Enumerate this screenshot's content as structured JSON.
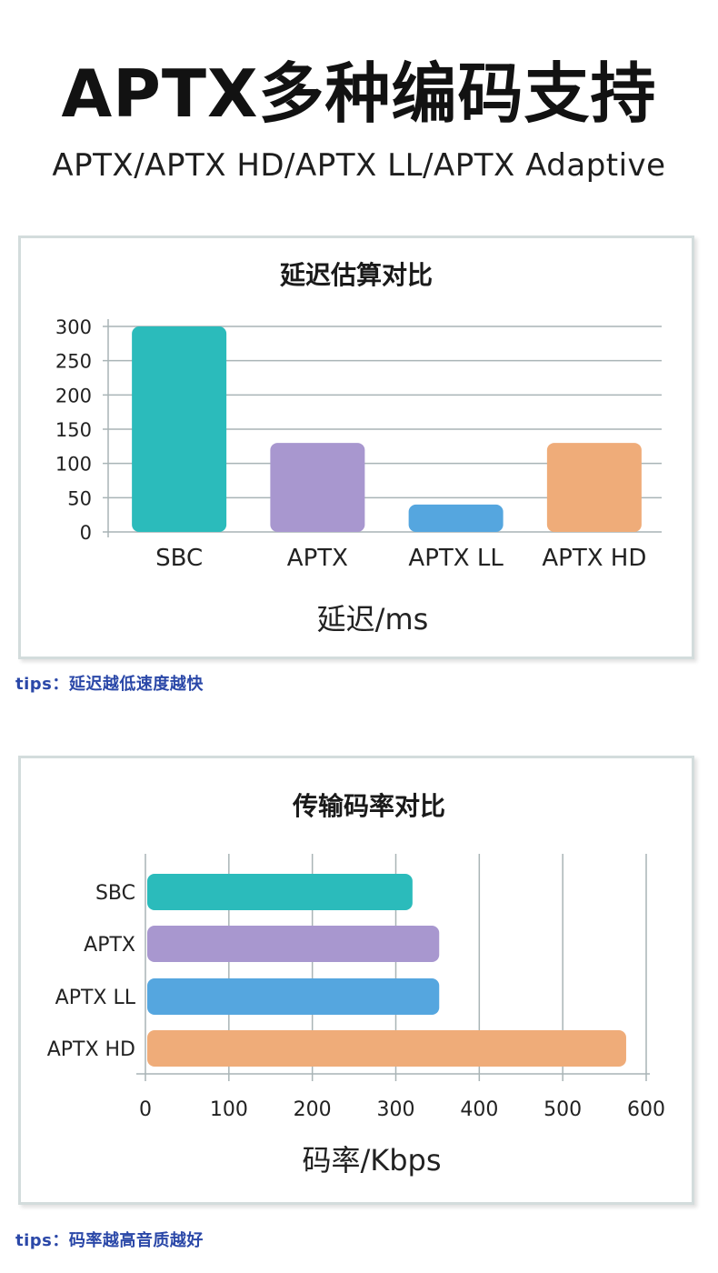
{
  "header": {
    "title": "APTX多种编码支持",
    "subtitle": "APTX/APTX HD/APTX LL/APTX Adaptive"
  },
  "charts": [
    {
      "tips": "tips：延迟越低速度越快"
    },
    {
      "tips": "tips：码率越高音质越好"
    }
  ],
  "chart_data": [
    {
      "type": "bar",
      "orientation": "vertical",
      "title": "延迟估算对比",
      "xlabel": "延迟/ms",
      "ylabel": "",
      "categories": [
        "SBC",
        "APTX",
        "APTX LL",
        "APTX HD"
      ],
      "values": [
        300,
        130,
        40,
        130
      ],
      "colors": [
        "#2bbbbb",
        "#a897cf",
        "#55a6df",
        "#efac79"
      ],
      "ylim": [
        0,
        300
      ],
      "yticks": [
        0,
        50,
        100,
        150,
        200,
        250,
        300
      ],
      "grid": "horizontal",
      "legend": "none"
    },
    {
      "type": "bar",
      "orientation": "horizontal",
      "title": "传输码率对比",
      "xlabel": "码率/Kbps",
      "ylabel": "",
      "categories": [
        "SBC",
        "APTX",
        "APTX LL",
        "APTX HD"
      ],
      "values": [
        320,
        352,
        352,
        576
      ],
      "colors": [
        "#2bbbbb",
        "#a897cf",
        "#55a6df",
        "#efac79"
      ],
      "xlim": [
        0,
        600
      ],
      "xticks": [
        0,
        100,
        200,
        300,
        400,
        500,
        600
      ],
      "grid": "vertical",
      "legend": "none"
    }
  ]
}
